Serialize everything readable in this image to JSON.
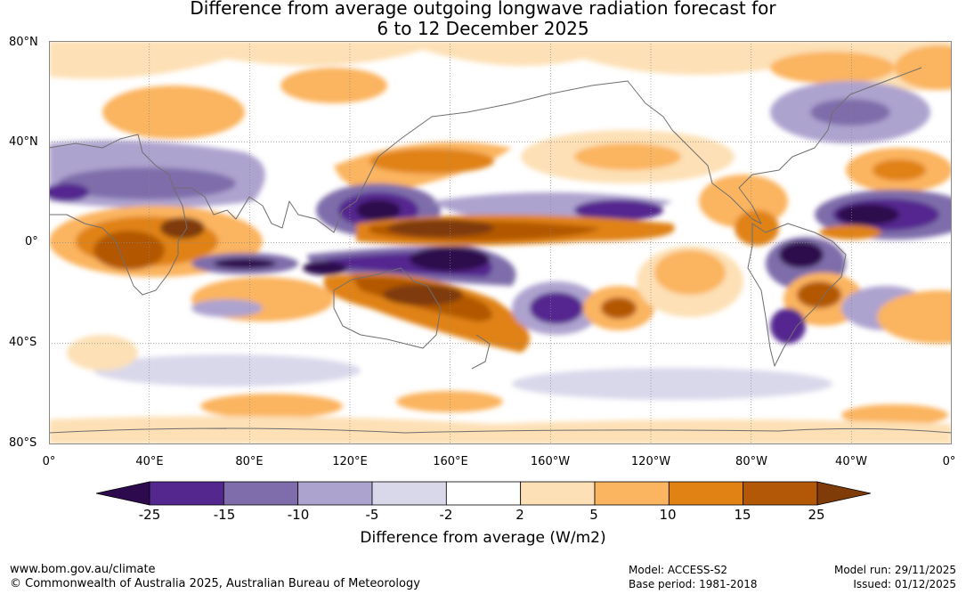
{
  "title_line1": "Difference from average outgoing longwave radiation forecast for",
  "title_line2": "6 to 12 December 2025",
  "lat_labels": [
    "80°N",
    "40°N",
    "0°",
    "40°S",
    "80°S"
  ],
  "lon_labels": [
    "0°",
    "40°E",
    "80°E",
    "120°E",
    "160°E",
    "160°W",
    "120°W",
    "80°W",
    "40°W",
    "0°"
  ],
  "colorbar": {
    "ticks": [
      "-25",
      "-15",
      "-10",
      "-5",
      "-2",
      "2",
      "5",
      "10",
      "15",
      "25"
    ],
    "colors": [
      "#2d0a4e",
      "#54278f",
      "#7e6daa",
      "#ada3cf",
      "#d9d8eb",
      "#ffffff",
      "#fde0b5",
      "#fbb45f",
      "#e08214",
      "#b35806",
      "#7f3b08"
    ],
    "label": "Difference from average (W/m2)"
  },
  "footer": {
    "website": "www.bom.gov.au/climate",
    "copyright": "© Commonwealth of Australia 2025, Australian Bureau of Meteorology",
    "model": "Model: ACCESS-S2",
    "base_period": "Base period: 1981-2018",
    "model_run": "Model run: 29/11/2025",
    "issued": "Issued: 01/12/2025"
  }
}
